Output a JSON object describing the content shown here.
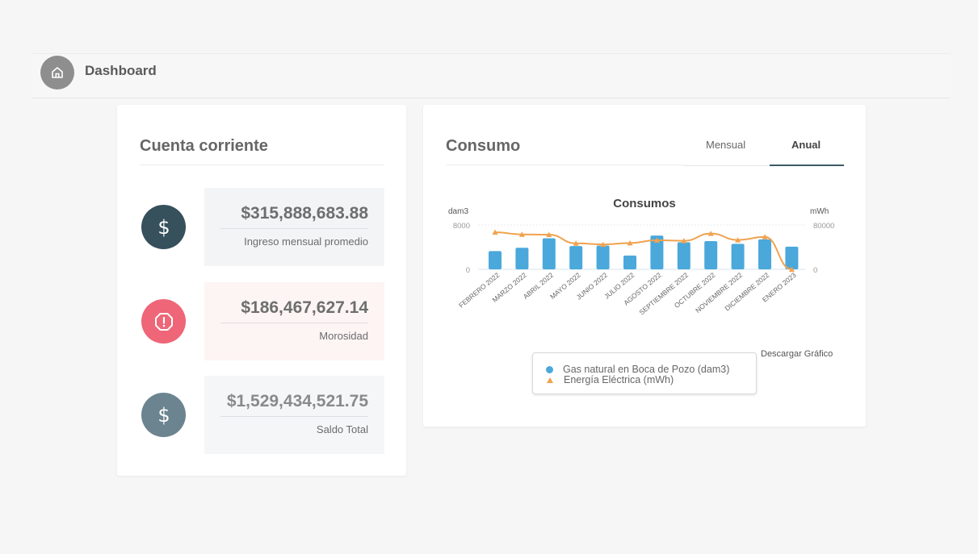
{
  "header": {
    "title": "Dashboard",
    "icon": "home-icon"
  },
  "cuenta": {
    "title": "Cuenta corriente",
    "items": [
      {
        "value": "$315,888,683.88",
        "label": "Ingreso mensual promedio",
        "icon": "dollar-icon",
        "icon_color": "#36505c",
        "box_color": "#f3f4f6"
      },
      {
        "value": "$186,467,627.14",
        "label": "Morosidad",
        "icon": "alert-octagon-icon",
        "icon_color": "#ee6677",
        "box_color": "#fdf4f4"
      },
      {
        "value": "$1,529,434,521.75",
        "label": "Saldo Total",
        "icon": "dollar-icon",
        "icon_color": "#6b8490",
        "box_color": "#f5f6f7"
      }
    ]
  },
  "consumo": {
    "title": "Consumo",
    "tabs": [
      {
        "label": "Mensual",
        "active": false
      },
      {
        "label": "Anual",
        "active": true
      }
    ],
    "download_label": "Descargar Gráfico"
  },
  "chart_data": {
    "type": "bar",
    "title": "Consumos",
    "categories": [
      "FEBRERO 2022",
      "MARZO 2022",
      "ABRIL 2022",
      "MAYO 2022",
      "JUNIO 2022",
      "JULIO 2022",
      "AGOSTO 2022",
      "SEPTIEMBRE 2022",
      "OCTUBRE 2022",
      "NOVIEMBRE 2022",
      "DICIEMBRE 2022",
      "ENERO 2023"
    ],
    "y_left": {
      "label": "dam3",
      "ticks": [
        "0",
        "8000"
      ],
      "range": [
        0,
        8000
      ]
    },
    "y_right": {
      "label": "mWh",
      "ticks": [
        "0",
        "80000"
      ],
      "range": [
        0,
        80000
      ]
    },
    "series": [
      {
        "name": "Gas natural en Boca de Pozo (dam3)",
        "type": "bar",
        "axis": "left",
        "color": "#4aa8db",
        "values": [
          3300,
          3900,
          5600,
          4200,
          4300,
          2500,
          6100,
          4900,
          5100,
          4600,
          5400,
          4100
        ]
      },
      {
        "name": "Energía Eléctrica (mWh)",
        "type": "line",
        "axis": "right",
        "color": "#f0a24f",
        "values": [
          67000,
          63000,
          62500,
          47000,
          45000,
          47500,
          52500,
          51500,
          64500,
          53000,
          58500,
          0
        ]
      }
    ],
    "legend_position": "bottom"
  }
}
